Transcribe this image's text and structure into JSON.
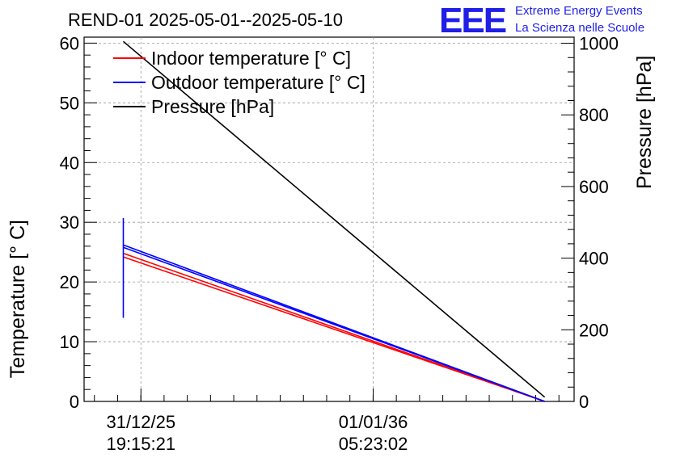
{
  "title": "REND-01 2025-05-01--2025-05-10",
  "logo": {
    "letters": "EEE",
    "line1": "Extreme Energy Events",
    "line2": "La Scienza nelle Scuole",
    "color": "#1f1fe8"
  },
  "chart_data": {
    "type": "line",
    "title": "REND-01 2025-05-01--2025-05-10",
    "xlabel": "",
    "ylabel": "Temperature [° C]",
    "y2label": "Pressure [hPa]",
    "ylim": [
      0,
      61
    ],
    "y2lim": [
      0,
      1017
    ],
    "y_ticks": [
      0,
      10,
      20,
      30,
      40,
      50,
      60
    ],
    "y2_ticks": [
      0,
      200,
      400,
      600,
      800,
      1000
    ],
    "x_tick_labels": [
      {
        "date": "31/12/25",
        "time": "19:15:21"
      },
      {
        "date": "01/01/36",
        "time": "05:23:02"
      }
    ],
    "grid": true,
    "legend_position": "top-left",
    "series": [
      {
        "name": "Indoor temperature [° C]",
        "color": "#ff0000",
        "axis": "left",
        "segments": [
          [
            [
              0.08,
              24.8
            ],
            [
              0.94,
              0.0
            ]
          ],
          [
            [
              0.08,
              24.2
            ],
            [
              0.94,
              0.0
            ]
          ]
        ]
      },
      {
        "name": "Outdoor temperature [° C]",
        "color": "#0000ff",
        "axis": "left",
        "segments": [
          [
            [
              0.08,
              26.2
            ],
            [
              0.94,
              0.0
            ]
          ],
          [
            [
              0.08,
              25.8
            ],
            [
              0.94,
              0.0
            ]
          ],
          [
            [
              0.08,
              14.0
            ],
            [
              0.08,
              30.7
            ]
          ]
        ]
      },
      {
        "name": "Pressure [hPa]",
        "color": "#000000",
        "axis": "right",
        "segments": [
          [
            [
              0.08,
              1005
            ],
            [
              0.94,
              12
            ]
          ]
        ]
      }
    ]
  }
}
